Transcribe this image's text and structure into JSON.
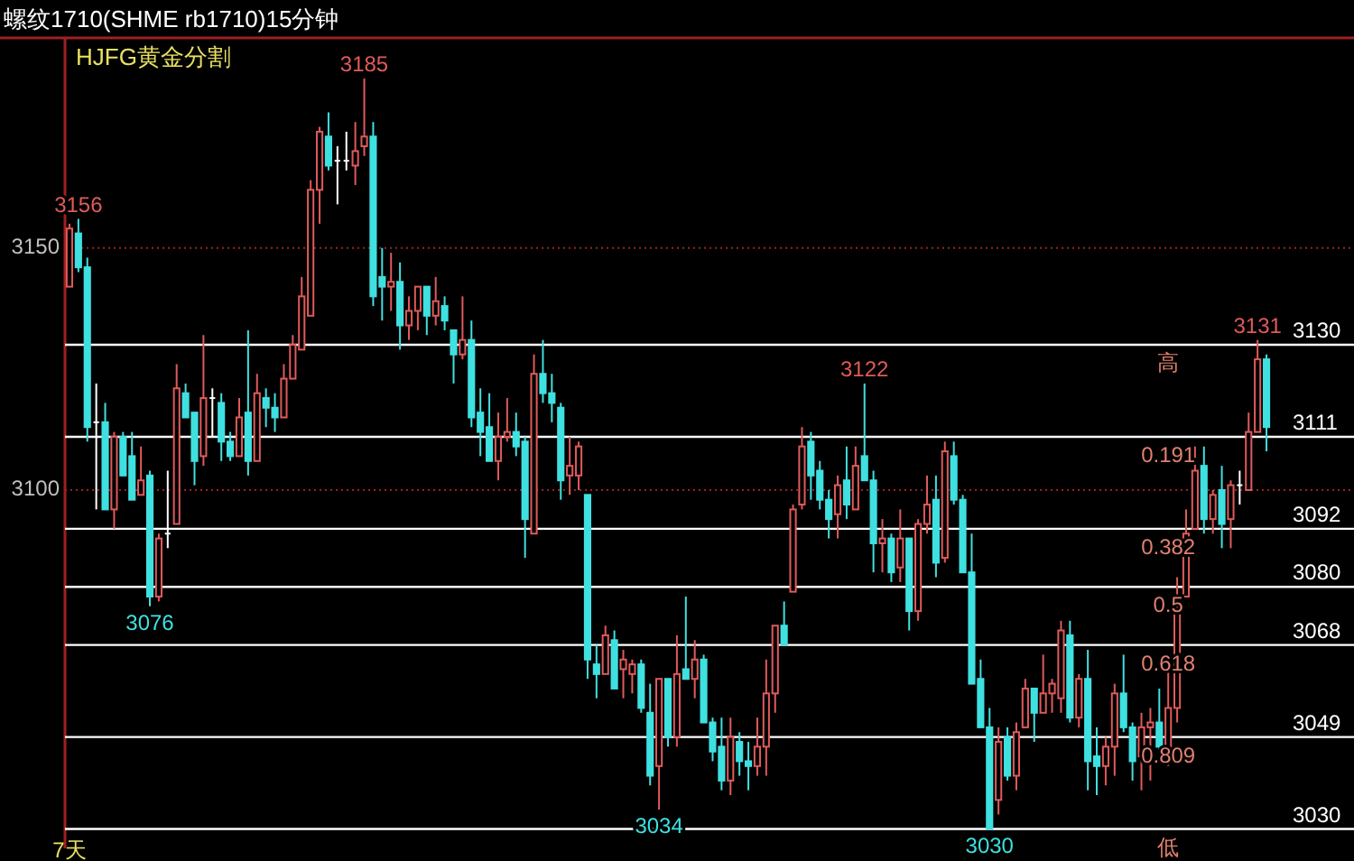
{
  "chart_data": {
    "type": "candlestick",
    "title": "螺纹1710(SHME rb1710)15分钟",
    "subtitle": "HJFG黄金分割",
    "categories": [
      "7天",
      null,
      null,
      null,
      null,
      null,
      null,
      null,
      null,
      null,
      null,
      null,
      null,
      null,
      null,
      null,
      null,
      null,
      null,
      null,
      null,
      null,
      null,
      null,
      null,
      null,
      null,
      null,
      null,
      null,
      null,
      null,
      null,
      null,
      null,
      null,
      null,
      null,
      null,
      null,
      null,
      null,
      null,
      null,
      null,
      null,
      null,
      null,
      null,
      null,
      null,
      null,
      null,
      null,
      null,
      null,
      null,
      null,
      null,
      null,
      null,
      null,
      null,
      null,
      null,
      null,
      null,
      null,
      null,
      null,
      null,
      null,
      null,
      null,
      null,
      null,
      null,
      null,
      null,
      null,
      null,
      null,
      null,
      null,
      null,
      null,
      null,
      null,
      null,
      null,
      null,
      null,
      null,
      null,
      null,
      null,
      null,
      null,
      null,
      null,
      null,
      null,
      null,
      null,
      null,
      null,
      null,
      null,
      null,
      null,
      null,
      null,
      null,
      null,
      null,
      null,
      null,
      null,
      null,
      null,
      null,
      null,
      null,
      null,
      null,
      null,
      null,
      null,
      null,
      null,
      null,
      null,
      null,
      null,
      null
    ],
    "ohlc": [
      [
        3142,
        3155,
        3142,
        3154
      ],
      [
        3153,
        3156,
        3145,
        3146
      ],
      [
        3146,
        3148,
        3110,
        3113
      ],
      [
        3114,
        3122,
        3096,
        3114
      ],
      [
        3114,
        3118,
        3096,
        3096
      ],
      [
        3096,
        3112,
        3092,
        3111
      ],
      [
        3111,
        3112,
        3103,
        3103
      ],
      [
        3107,
        3112,
        3098,
        3098
      ],
      [
        3099,
        3109,
        3099,
        3102
      ],
      [
        3103,
        3104,
        3076,
        3078
      ],
      [
        3078,
        3091,
        3077,
        3090
      ],
      [
        3091,
        3104,
        3088,
        3091
      ],
      [
        3093,
        3126,
        3093,
        3121
      ],
      [
        3120,
        3122,
        3115,
        3115
      ],
      [
        3116,
        3116,
        3101,
        3106
      ],
      [
        3107,
        3132,
        3105,
        3119
      ],
      [
        3119,
        3121,
        3111,
        3119
      ],
      [
        3118,
        3120,
        3106,
        3110
      ],
      [
        3110,
        3112,
        3106,
        3107
      ],
      [
        3107,
        3119,
        3107,
        3115
      ],
      [
        3116,
        3133,
        3103,
        3106
      ],
      [
        3106,
        3124,
        3106,
        3120
      ],
      [
        3119,
        3121,
        3113,
        3117
      ],
      [
        3117,
        3120,
        3112,
        3115
      ],
      [
        3115,
        3126,
        3115,
        3123
      ],
      [
        3123,
        3132,
        3123,
        3130
      ],
      [
        3129,
        3144,
        3129,
        3140
      ],
      [
        3136,
        3164,
        3136,
        3162
      ],
      [
        3162,
        3175,
        3155,
        3174
      ],
      [
        3173,
        3178,
        3166,
        3167
      ],
      [
        3168,
        3171,
        3159,
        3168
      ],
      [
        3168,
        3174,
        3166,
        3168
      ],
      [
        3167,
        3176,
        3163,
        3170
      ],
      [
        3171,
        3185,
        3169,
        3173
      ],
      [
        3173,
        3176,
        3138,
        3140
      ],
      [
        3144,
        3150,
        3135,
        3142
      ],
      [
        3142,
        3149,
        3137,
        3143
      ],
      [
        3143,
        3147,
        3129,
        3134
      ],
      [
        3134,
        3140,
        3131,
        3137
      ],
      [
        3137,
        3142,
        3133,
        3142
      ],
      [
        3142,
        3142,
        3132,
        3136
      ],
      [
        3136,
        3144,
        3134,
        3139
      ],
      [
        3138,
        3140,
        3133,
        3135
      ],
      [
        3133,
        3133,
        3122,
        3128
      ],
      [
        3128,
        3140,
        3127,
        3131
      ],
      [
        3131,
        3135,
        3113,
        3115
      ],
      [
        3116,
        3121,
        3107,
        3112
      ],
      [
        3113,
        3120,
        3106,
        3106
      ],
      [
        3106,
        3116,
        3102,
        3111
      ],
      [
        3111,
        3119,
        3110,
        3112
      ],
      [
        3112,
        3116,
        3107,
        3109
      ],
      [
        3110,
        3111,
        3086,
        3094
      ],
      [
        3091,
        3128,
        3091,
        3124
      ],
      [
        3124,
        3131,
        3118,
        3120
      ],
      [
        3120,
        3124,
        3114,
        3118
      ],
      [
        3117,
        3118,
        3098,
        3102
      ],
      [
        3103,
        3111,
        3099,
        3105
      ],
      [
        3103,
        3110,
        3100,
        3109
      ],
      [
        3099,
        3099,
        3061,
        3065
      ],
      [
        3064,
        3068,
        3057,
        3062
      ],
      [
        3062,
        3072,
        3062,
        3070
      ],
      [
        3069,
        3071,
        3059,
        3059
      ],
      [
        3063,
        3067,
        3057,
        3065
      ],
      [
        3062,
        3065,
        3058,
        3064
      ],
      [
        3064,
        3065,
        3054,
        3055
      ],
      [
        3054,
        3060,
        3039,
        3041
      ],
      [
        3043,
        3061,
        3034,
        3061
      ],
      [
        3061,
        3061,
        3047,
        3049
      ],
      [
        3049,
        3070,
        3047,
        3062
      ],
      [
        3063,
        3078,
        3061,
        3061
      ],
      [
        3061,
        3069,
        3057,
        3065
      ],
      [
        3065,
        3066,
        3052,
        3052
      ],
      [
        3052,
        3053,
        3044,
        3046
      ],
      [
        3047,
        3053,
        3038,
        3040
      ],
      [
        3040,
        3053,
        3037,
        3049
      ],
      [
        3048,
        3050,
        3041,
        3044
      ],
      [
        3044,
        3048,
        3038,
        3043
      ],
      [
        3043,
        3053,
        3041,
        3047
      ],
      [
        3047,
        3065,
        3041,
        3058
      ],
      [
        3058,
        3072,
        3054,
        3072
      ],
      [
        3072,
        3077,
        3068,
        3068
      ],
      [
        3079,
        3097,
        3079,
        3096
      ],
      [
        3097,
        3113,
        3096,
        3109
      ],
      [
        3110,
        3112,
        3098,
        3103
      ],
      [
        3104,
        3106,
        3096,
        3098
      ],
      [
        3098,
        3100,
        3090,
        3094
      ],
      [
        3095,
        3103,
        3090,
        3101
      ],
      [
        3102,
        3109,
        3094,
        3097
      ],
      [
        3096,
        3109,
        3096,
        3105
      ],
      [
        3107,
        3122,
        3102,
        3102
      ],
      [
        3102,
        3104,
        3083,
        3089
      ],
      [
        3089,
        3094,
        3083,
        3090
      ],
      [
        3090,
        3091,
        3081,
        3083
      ],
      [
        3084,
        3096,
        3081,
        3090
      ],
      [
        3090,
        3090,
        3071,
        3075
      ],
      [
        3075,
        3094,
        3073,
        3093
      ],
      [
        3093,
        3103,
        3091,
        3097
      ],
      [
        3098,
        3103,
        3082,
        3085
      ],
      [
        3086,
        3110,
        3085,
        3108
      ],
      [
        3107,
        3110,
        3097,
        3098
      ],
      [
        3098,
        3099,
        3083,
        3083
      ],
      [
        3083,
        3091,
        3060,
        3060
      ],
      [
        3061,
        3065,
        3051,
        3051
      ],
      [
        3051,
        3055,
        3030,
        3030
      ],
      [
        3036,
        3051,
        3033,
        3048
      ],
      [
        3049,
        3051,
        3040,
        3041
      ],
      [
        3041,
        3052,
        3038,
        3050
      ],
      [
        3051,
        3061,
        3051,
        3059
      ],
      [
        3059,
        3059,
        3048,
        3054
      ],
      [
        3054,
        3066,
        3054,
        3058
      ],
      [
        3058,
        3061,
        3054,
        3060
      ],
      [
        3057,
        3073,
        3054,
        3071
      ],
      [
        3070,
        3073,
        3052,
        3053
      ],
      [
        3053,
        3062,
        3051,
        3061
      ],
      [
        3061,
        3067,
        3038,
        3044
      ],
      [
        3045,
        3051,
        3037,
        3043
      ],
      [
        3043,
        3049,
        3039,
        3047
      ],
      [
        3047,
        3060,
        3041,
        3058
      ],
      [
        3058,
        3066,
        3050,
        3051
      ],
      [
        3051,
        3052,
        3040,
        3044
      ],
      [
        3045,
        3054,
        3038,
        3051
      ],
      [
        3051,
        3055,
        3040,
        3052
      ],
      [
        3052,
        3059,
        3046,
        3047
      ],
      [
        3045,
        3066,
        3043,
        3055
      ],
      [
        3055,
        3082,
        3052,
        3075
      ],
      [
        3078,
        3096,
        3078,
        3091
      ],
      [
        3092,
        3109,
        3092,
        3104
      ],
      [
        3105,
        3109,
        3091,
        3094
      ],
      [
        3094,
        3100,
        3091,
        3099
      ],
      [
        3100,
        3105,
        3088,
        3093
      ],
      [
        3094,
        3102,
        3088,
        3101
      ],
      [
        3101,
        3104,
        3097,
        3101
      ],
      [
        3100,
        3116,
        3100,
        3112
      ],
      [
        3112,
        3131,
        3112,
        3127
      ],
      [
        3127,
        3128,
        3108,
        3113
      ]
    ],
    "colors": [
      "#e05a5a",
      "#3fe0e0",
      "#3fe0e0",
      "#ffffff",
      "#3fe0e0",
      "#e05a5a",
      "#3fe0e0",
      "#3fe0e0",
      "#e05a5a",
      "#3fe0e0",
      "#e05a5a",
      "#ffffff",
      "#e05a5a",
      "#3fe0e0",
      "#3fe0e0",
      "#e05a5a",
      "#ffffff",
      "#3fe0e0",
      "#3fe0e0",
      "#e05a5a",
      "#3fe0e0",
      "#e05a5a",
      "#3fe0e0",
      "#3fe0e0",
      "#e05a5a",
      "#e05a5a",
      "#e05a5a",
      "#e05a5a",
      "#e05a5a",
      "#3fe0e0",
      "#ffffff",
      "#ffffff",
      "#e05a5a",
      "#e05a5a",
      "#3fe0e0",
      "#3fe0e0",
      "#e05a5a",
      "#3fe0e0",
      "#e05a5a",
      "#e05a5a",
      "#3fe0e0",
      "#e05a5a",
      "#3fe0e0",
      "#3fe0e0",
      "#e05a5a",
      "#3fe0e0",
      "#3fe0e0",
      "#3fe0e0",
      "#e05a5a",
      "#e05a5a",
      "#3fe0e0",
      "#3fe0e0",
      "#e05a5a",
      "#3fe0e0",
      "#3fe0e0",
      "#3fe0e0",
      "#e05a5a",
      "#e05a5a",
      "#3fe0e0",
      "#3fe0e0",
      "#e05a5a",
      "#3fe0e0",
      "#e05a5a",
      "#e05a5a",
      "#3fe0e0",
      "#3fe0e0",
      "#e05a5a",
      "#3fe0e0",
      "#e05a5a",
      "#3fe0e0",
      "#e05a5a",
      "#3fe0e0",
      "#3fe0e0",
      "#3fe0e0",
      "#e05a5a",
      "#3fe0e0",
      "#3fe0e0",
      "#e05a5a",
      "#e05a5a",
      "#e05a5a",
      "#3fe0e0",
      "#e05a5a",
      "#e05a5a",
      "#3fe0e0",
      "#3fe0e0",
      "#3fe0e0",
      "#e05a5a",
      "#3fe0e0",
      "#e05a5a",
      "#3fe0e0",
      "#3fe0e0",
      "#e05a5a",
      "#3fe0e0",
      "#e05a5a",
      "#3fe0e0",
      "#e05a5a",
      "#e05a5a",
      "#3fe0e0",
      "#e05a5a",
      "#3fe0e0",
      "#3fe0e0",
      "#3fe0e0",
      "#3fe0e0",
      "#3fe0e0",
      "#e05a5a",
      "#3fe0e0",
      "#e05a5a",
      "#e05a5a",
      "#3fe0e0",
      "#e05a5a",
      "#e05a5a",
      "#e05a5a",
      "#3fe0e0",
      "#e05a5a",
      "#3fe0e0",
      "#3fe0e0",
      "#e05a5a",
      "#e05a5a",
      "#3fe0e0",
      "#3fe0e0",
      "#e05a5a",
      "#e05a5a",
      "#3fe0e0",
      "#e05a5a",
      "#e05a5a",
      "#e05a5a",
      "#e05a5a",
      "#3fe0e0",
      "#e05a5a",
      "#3fe0e0",
      "#e05a5a",
      "#ffffff",
      "#e05a5a",
      "#e05a5a",
      "#3fe0e0"
    ],
    "ylim": [
      3026,
      3193
    ],
    "yticks": [
      3100,
      3150
    ],
    "grid": "y",
    "ref_lines": [
      {
        "axis": "y",
        "value": 3130,
        "label": "3130",
        "color": "#ffffff"
      },
      {
        "axis": "y",
        "value": 3111,
        "label": "3111",
        "color": "#ffffff"
      },
      {
        "axis": "y",
        "value": 3092,
        "label": "3092",
        "color": "#ffffff"
      },
      {
        "axis": "y",
        "value": 3080,
        "label": "3080",
        "color": "#ffffff"
      },
      {
        "axis": "y",
        "value": 3068,
        "label": "3068",
        "color": "#ffffff"
      },
      {
        "axis": "y",
        "value": 3049,
        "label": "3049",
        "color": "#ffffff"
      },
      {
        "axis": "y",
        "value": 3030,
        "label": "3030",
        "color": "#ffffff"
      }
    ],
    "annotations": [
      {
        "text": "3156",
        "y": 3156
      },
      {
        "text": "3185",
        "y": 3185
      },
      {
        "text": "3076",
        "y": 3076
      },
      {
        "text": "3122",
        "y": 3122
      },
      {
        "text": "3034",
        "y": 3034
      },
      {
        "text": "3030",
        "y": 3030
      },
      {
        "text": "3131",
        "y": 3131
      },
      {
        "text": "高",
        "y": 3130
      },
      {
        "text": "0.191",
        "y": 3111
      },
      {
        "text": "0.382",
        "y": 3092
      },
      {
        "text": "0.5",
        "y": 3080
      },
      {
        "text": "0.618",
        "y": 3068
      },
      {
        "text": "0.809",
        "y": 3049
      },
      {
        "text": "低",
        "y": 3030
      }
    ]
  }
}
